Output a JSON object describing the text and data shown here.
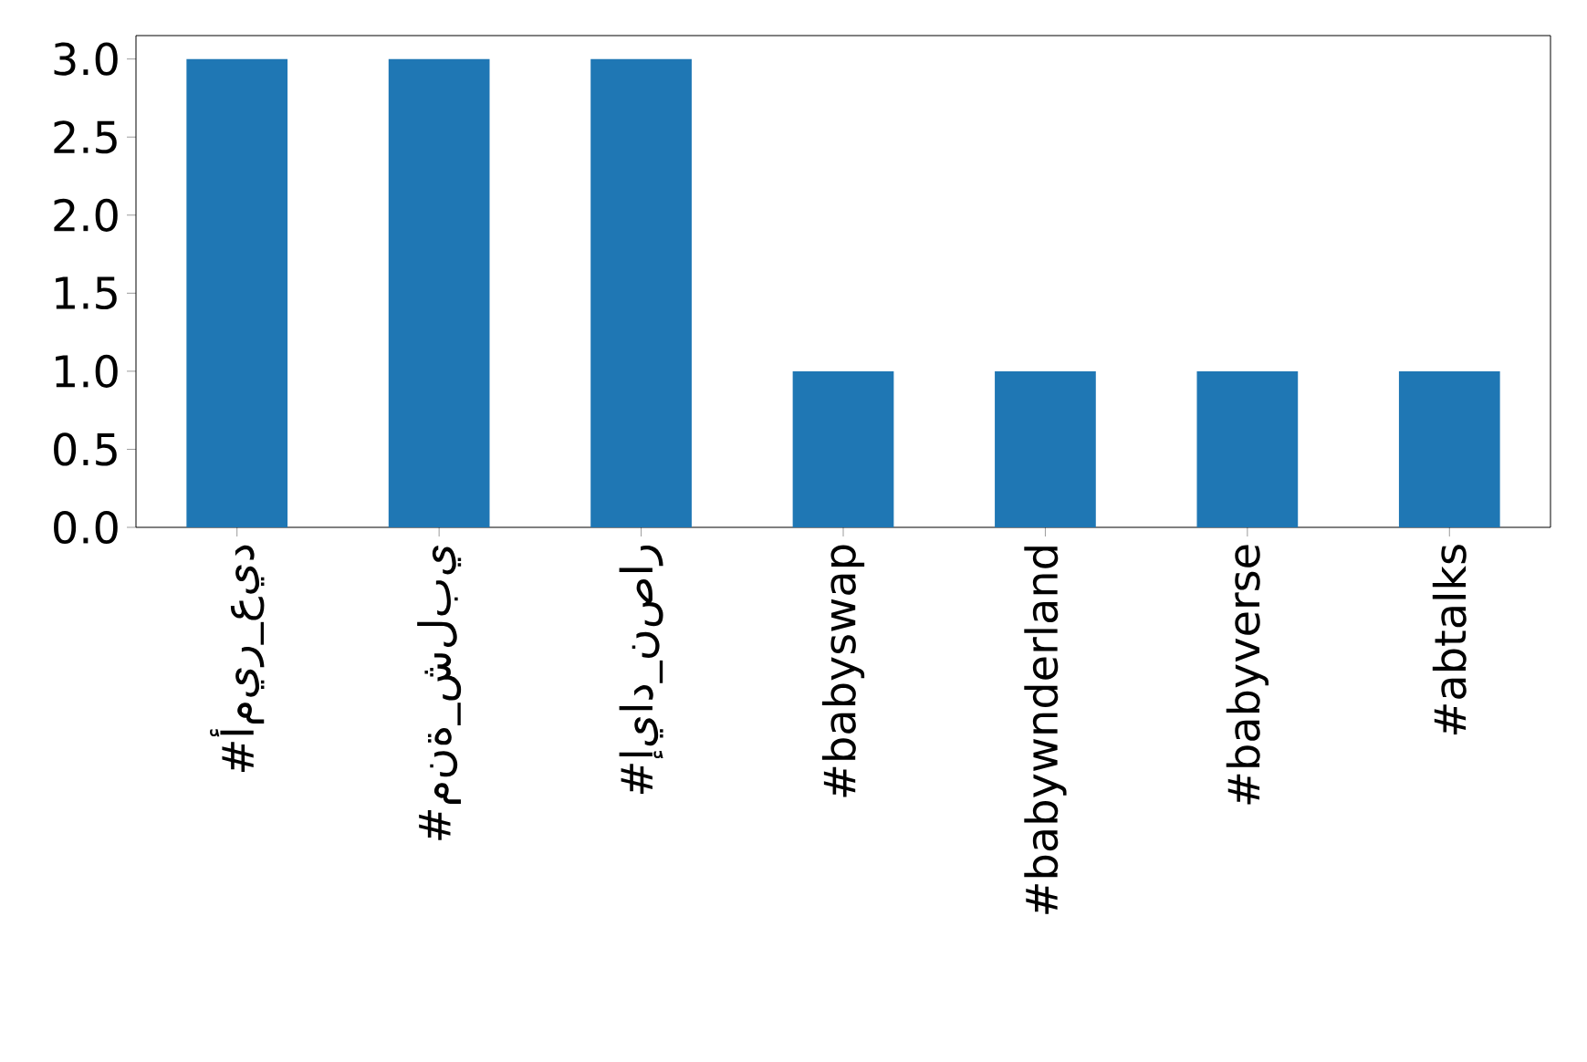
{
  "chart_data": {
    "type": "bar",
    "categories": [
      "#أمير_عيد",
      "#منة_شلبي",
      "#إياد_نصار",
      "#babyswap",
      "#babywnderland",
      "#babyverse",
      "#abtalks"
    ],
    "values": [
      3,
      3,
      3,
      1,
      1,
      1,
      1
    ],
    "color": "#1f77b4",
    "ylim": [
      0,
      3.15
    ],
    "yticks": [
      {
        "value": 0,
        "label": "0.0"
      },
      {
        "value": 0.5,
        "label": "0.5"
      },
      {
        "value": 1,
        "label": "1.0"
      },
      {
        "value": 1.5,
        "label": "1.5"
      },
      {
        "value": 2,
        "label": "2.0"
      },
      {
        "value": 2.5,
        "label": "2.5"
      },
      {
        "value": 3,
        "label": "3.0"
      }
    ],
    "grid": false
  }
}
